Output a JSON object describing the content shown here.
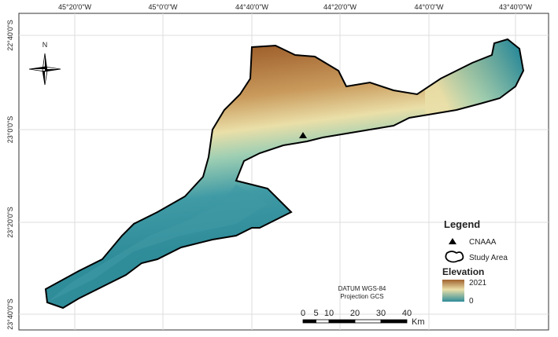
{
  "graticule": {
    "longitudes": [
      "45°20'0\"W",
      "45°0'0\"W",
      "44°40'0\"W",
      "44°20'0\"W",
      "44°0'0\"W",
      "43°40'0\"W"
    ],
    "latitudes": [
      "22°40'0\"S",
      "23°0'0\"S",
      "23°20'0\"S",
      "23°40'0\"S"
    ]
  },
  "north_arrow": {
    "label": "N"
  },
  "datum": {
    "line1": "DATUM WGS-84",
    "line2": "Projection GCS"
  },
  "scale_bar": {
    "ticks": [
      0,
      5,
      10,
      20,
      30,
      40
    ],
    "unit": "Km"
  },
  "legend": {
    "title": "Legend",
    "items": [
      "CNAAA",
      "Study Area"
    ],
    "elevation_title": "Elevation",
    "elevation_max": 2021,
    "elevation_min": 0
  }
}
